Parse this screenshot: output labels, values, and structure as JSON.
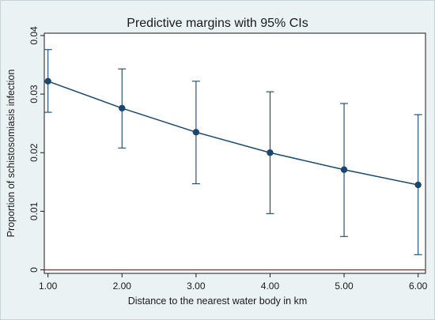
{
  "chart_data": {
    "type": "line",
    "title": "Predictive margins with 95% CIs",
    "xlabel": "Distance to the nearest water body in km",
    "ylabel": "Proportion of schistosomiasis infection",
    "x_ticks": [
      "1.00",
      "2.00",
      "3.00",
      "4.00",
      "5.00",
      "6.00"
    ],
    "y_ticks": [
      "0",
      "0.01",
      "0.02",
      "0.03",
      "0.04"
    ],
    "xlim": [
      0.95,
      6.1
    ],
    "ylim": [
      -0.0006,
      0.0404
    ],
    "reference_line": {
      "y": 0,
      "color": "#b22222"
    },
    "colors": {
      "series": "#1a476f",
      "plot_bg": "#ffffff",
      "outer_bg": "#eaf2f3"
    },
    "series": [
      {
        "x": [
          1,
          2,
          3,
          4,
          5,
          6
        ],
        "values": [
          0.0322,
          0.0276,
          0.0235,
          0.02,
          0.0171,
          0.0145
        ],
        "ci_low": [
          0.0269,
          0.0208,
          0.0147,
          0.0096,
          0.0057,
          0.0026
        ],
        "ci_high": [
          0.0376,
          0.0343,
          0.0322,
          0.0304,
          0.0284,
          0.0265
        ]
      }
    ]
  }
}
